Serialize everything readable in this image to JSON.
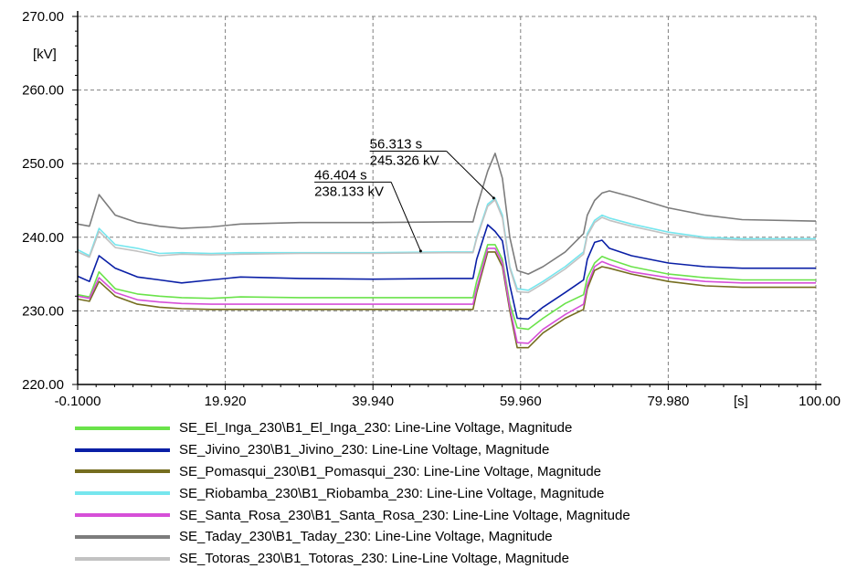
{
  "chart_data": {
    "type": "line",
    "ylabel": "[kV]",
    "xlabel": "[s]",
    "xlim": [
      -0.1,
      100.0
    ],
    "ylim": [
      220.0,
      270.0
    ],
    "x_ticks": [
      -0.1,
      19.92,
      39.94,
      59.96,
      79.98,
      100.0
    ],
    "x_tick_labels": [
      "-0.1000",
      "19.920",
      "39.940",
      "59.960",
      "79.980",
      "100.00"
    ],
    "y_ticks": [
      220,
      230,
      240,
      250,
      260,
      270
    ],
    "y_tick_labels": [
      "220.00",
      "230.00",
      "240.00",
      "250.00",
      "260.00",
      "270.00"
    ],
    "grid": true,
    "legend_position": "bottom",
    "series": [
      {
        "name": "SE_El_Inga_230\\B1_El_Inga_230: Line-Line Voltage, Magnitude",
        "color": "#6ae34a",
        "x": [
          -0.1,
          1.5,
          2.8,
          5,
          8,
          11,
          14,
          18,
          22,
          30,
          40,
          50,
          53.5,
          54,
          55.5,
          56.5,
          57.5,
          58.5,
          59.5,
          61,
          63,
          66,
          68.5,
          69,
          70,
          71,
          72,
          75,
          80,
          85,
          90,
          100
        ],
        "y": [
          232.2,
          231.9,
          235.3,
          233.0,
          232.3,
          232.0,
          231.8,
          231.7,
          231.9,
          231.8,
          231.8,
          231.8,
          231.8,
          234.0,
          239.0,
          239.0,
          237.0,
          231.0,
          227.7,
          227.5,
          229.0,
          231.0,
          232.2,
          234.5,
          236.5,
          237.4,
          237.0,
          236.0,
          235.0,
          234.5,
          234.2,
          234.2
        ]
      },
      {
        "name": "SE_Jivino_230\\B1_Jivino_230: Line-Line Voltage, Magnitude",
        "color": "#0a1fa6",
        "x": [
          -0.1,
          1.5,
          2.8,
          5,
          8,
          11,
          14,
          18,
          22,
          30,
          40,
          50,
          53.5,
          54,
          55.5,
          56.5,
          57.5,
          58.5,
          59.5,
          61,
          63,
          66,
          68.5,
          69,
          70,
          71,
          72,
          75,
          80,
          85,
          90,
          100
        ],
        "y": [
          234.7,
          234.0,
          237.5,
          235.8,
          234.6,
          234.2,
          233.8,
          234.2,
          234.6,
          234.4,
          234.3,
          234.4,
          234.4,
          237.0,
          241.7,
          240.8,
          239.5,
          233.5,
          229.0,
          228.9,
          230.5,
          232.5,
          234.2,
          237.0,
          239.3,
          239.6,
          238.5,
          237.5,
          236.5,
          236.0,
          235.8,
          235.8
        ]
      },
      {
        "name": "SE_Pomasqui_230\\B1_Pomasqui_230: Line-Line Voltage, Magnitude",
        "color": "#756d1f",
        "x": [
          -0.1,
          1.5,
          2.8,
          5,
          8,
          11,
          14,
          18,
          22,
          30,
          40,
          50,
          53.5,
          54,
          55.5,
          56.5,
          57.5,
          58.5,
          59.5,
          61,
          63,
          66,
          68.5,
          69,
          70,
          71,
          72,
          75,
          80,
          85,
          90,
          100
        ],
        "y": [
          231.6,
          231.3,
          234.0,
          232.0,
          230.9,
          230.5,
          230.3,
          230.2,
          230.2,
          230.2,
          230.2,
          230.2,
          230.2,
          232.5,
          238.0,
          238.0,
          236.0,
          230.0,
          225.0,
          225.0,
          227.0,
          229.0,
          230.2,
          233.0,
          235.5,
          236.0,
          235.8,
          235.0,
          234.0,
          233.4,
          233.2,
          233.2
        ]
      },
      {
        "name": "SE_Riobamba_230\\B1_Riobamba_230: Line-Line Voltage, Magnitude",
        "color": "#76e6ee",
        "x": [
          -0.1,
          1.5,
          2.8,
          5,
          8,
          11,
          14,
          18,
          22,
          30,
          40,
          50,
          53.5,
          54,
          55.5,
          56.5,
          57.5,
          58.5,
          59.5,
          61,
          63,
          66,
          68.5,
          69,
          70,
          71,
          72,
          75,
          80,
          85,
          90,
          100
        ],
        "y": [
          238.3,
          237.5,
          241.2,
          239.0,
          238.5,
          237.8,
          237.9,
          237.8,
          237.9,
          237.9,
          237.9,
          238.0,
          238.0,
          240.0,
          244.5,
          245.3,
          243.0,
          236.0,
          233.0,
          232.8,
          234.0,
          236.0,
          238.0,
          240.5,
          242.3,
          243.0,
          242.6,
          241.8,
          240.7,
          240.0,
          239.8,
          239.8
        ]
      },
      {
        "name": "SE_Santa_Rosa_230\\B1_Santa_Rosa_230: Line-Line Voltage, Magnitude",
        "color": "#d64fd8",
        "x": [
          -0.1,
          1.5,
          2.8,
          5,
          8,
          11,
          14,
          18,
          22,
          30,
          40,
          50,
          53.5,
          54,
          55.5,
          56.5,
          57.5,
          58.5,
          59.5,
          61,
          63,
          66,
          68.5,
          69,
          70,
          71,
          72,
          75,
          80,
          85,
          90,
          100
        ],
        "y": [
          232.0,
          231.7,
          234.5,
          232.5,
          231.5,
          231.2,
          231.0,
          230.9,
          230.9,
          230.9,
          230.9,
          230.9,
          230.9,
          233.0,
          238.5,
          238.5,
          236.5,
          230.5,
          225.7,
          225.6,
          227.5,
          229.5,
          230.9,
          233.5,
          236.0,
          236.7,
          236.3,
          235.3,
          234.5,
          234.0,
          233.8,
          233.8
        ]
      },
      {
        "name": "SE_Taday_230\\B1_Taday_230: Line-Line Voltage, Magnitude",
        "color": "#7c7c7c",
        "x": [
          -0.1,
          1.5,
          2.8,
          5,
          8,
          11,
          14,
          18,
          22,
          30,
          40,
          50,
          53.5,
          54,
          55.5,
          56.5,
          57.5,
          58.5,
          59.5,
          61,
          63,
          66,
          68.5,
          69,
          70,
          71,
          72,
          75,
          80,
          85,
          90,
          100
        ],
        "y": [
          241.8,
          241.5,
          245.8,
          243.0,
          242.0,
          241.5,
          241.2,
          241.4,
          241.8,
          242.0,
          242.0,
          242.1,
          242.1,
          244.0,
          249.0,
          251.4,
          248.0,
          240.0,
          235.5,
          235.0,
          236.0,
          238.0,
          240.5,
          243.0,
          245.0,
          246.0,
          246.3,
          245.5,
          244.0,
          243.0,
          242.4,
          242.2
        ]
      },
      {
        "name": "SE_Totoras_230\\B1_Totoras_230: Line-Line Voltage, Magnitude",
        "color": "#c2c2c2",
        "x": [
          -0.1,
          1.5,
          2.8,
          5,
          8,
          11,
          14,
          18,
          22,
          30,
          40,
          50,
          53.5,
          54,
          55.5,
          56.5,
          57.5,
          58.5,
          59.5,
          61,
          63,
          66,
          68.5,
          69,
          70,
          71,
          72,
          75,
          80,
          85,
          90,
          100
        ],
        "y": [
          238.0,
          237.3,
          240.8,
          238.6,
          238.1,
          237.5,
          237.7,
          237.6,
          237.7,
          237.8,
          237.8,
          237.9,
          237.9,
          239.8,
          244.2,
          245.1,
          242.6,
          235.8,
          232.6,
          232.5,
          233.7,
          235.7,
          237.7,
          240.2,
          242.0,
          242.7,
          242.3,
          241.5,
          240.4,
          239.8,
          239.6,
          239.6
        ]
      }
    ],
    "annotations": [
      {
        "lines": [
          "46.404 s",
          "238.133 kV"
        ],
        "x": 46.404,
        "y": 238.133,
        "label_x": 32.0,
        "label_y": 247.5
      },
      {
        "lines": [
          "56.313 s",
          "245.326 kV"
        ],
        "x": 56.313,
        "y": 245.326,
        "label_x": 39.5,
        "label_y": 251.7
      }
    ]
  }
}
